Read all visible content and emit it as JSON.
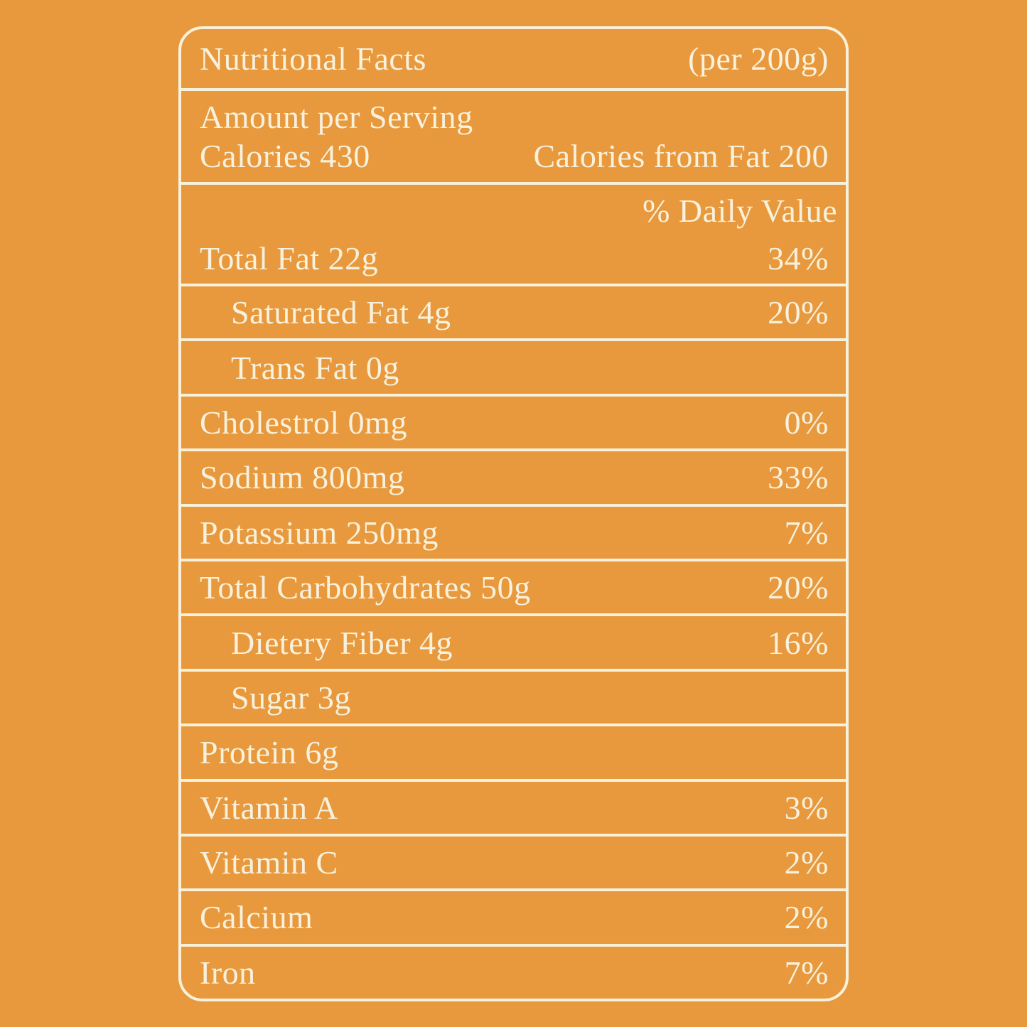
{
  "colors": {
    "background": "#E8993D",
    "foreground": "#F8F1DC"
  },
  "header": {
    "title": "Nutritional Facts",
    "serving_note": "(per 200g)"
  },
  "serving_section": {
    "amount_line": "Amount per Serving",
    "calories": "Calories 430",
    "calories_from_fat": "Calories from Fat 200"
  },
  "daily_value_section": {
    "header": "% Daily Value",
    "row": {
      "label": "Total Fat 22g",
      "value": "34%"
    }
  },
  "rows": [
    {
      "label": "Saturated Fat 4g",
      "value": "20%",
      "indent": true
    },
    {
      "label": "Trans Fat 0g",
      "value": "",
      "indent": true
    },
    {
      "label": "Cholestrol 0mg",
      "value": "0%",
      "indent": false
    },
    {
      "label": "Sodium 800mg",
      "value": "33%",
      "indent": false
    },
    {
      "label": "Potassium 250mg",
      "value": "7%",
      "indent": false
    },
    {
      "label": "Total Carbohydrates 50g",
      "value": "20%",
      "indent": false
    },
    {
      "label": "Dietery Fiber 4g",
      "value": "16%",
      "indent": true
    },
    {
      "label": "Sugar 3g",
      "value": "",
      "indent": true
    },
    {
      "label": "Protein 6g",
      "value": "",
      "indent": false
    },
    {
      "label": "Vitamin A",
      "value": "3%",
      "indent": false
    },
    {
      "label": "Vitamin C",
      "value": "2%",
      "indent": false
    },
    {
      "label": "Calcium",
      "value": "2%",
      "indent": false
    },
    {
      "label": "Iron",
      "value": "7%",
      "indent": false
    }
  ]
}
